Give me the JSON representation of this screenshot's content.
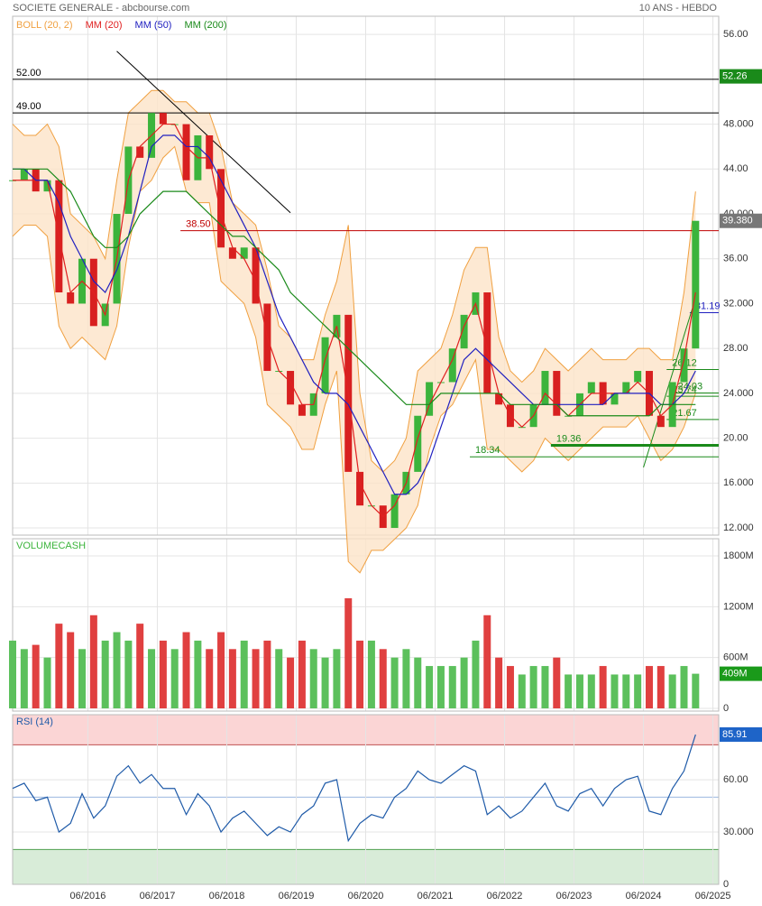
{
  "chart_data": {
    "type": "candlestick",
    "title": "SOCIETE GENERALE - abcbourse.com",
    "subtitle": "10 ANS - HEBDO",
    "x": [
      "2015-05",
      "2015-07",
      "2015-09",
      "2015-11",
      "2016-01",
      "2016-03",
      "2016-05",
      "2016-07",
      "2016-09",
      "2016-11",
      "2017-01",
      "2017-03",
      "2017-05",
      "2017-07",
      "2017-09",
      "2017-11",
      "2018-01",
      "2018-03",
      "2018-05",
      "2018-07",
      "2018-09",
      "2018-11",
      "2019-01",
      "2019-03",
      "2019-05",
      "2019-07",
      "2019-09",
      "2019-11",
      "2020-01",
      "2020-03",
      "2020-05",
      "2020-07",
      "2020-09",
      "2020-11",
      "2021-01",
      "2021-03",
      "2021-05",
      "2021-07",
      "2021-09",
      "2021-11",
      "2022-01",
      "2022-03",
      "2022-05",
      "2022-07",
      "2022-09",
      "2022-11",
      "2023-01",
      "2023-03",
      "2023-05",
      "2023-07",
      "2023-09",
      "2023-11",
      "2024-01",
      "2024-03",
      "2024-05",
      "2024-07",
      "2024-09",
      "2024-11",
      "2025-01",
      "2025-03"
    ],
    "close": [
      43,
      44,
      42,
      43,
      33,
      32,
      36,
      30,
      32,
      40,
      46,
      45,
      49,
      48,
      48,
      43,
      47,
      44,
      37,
      36,
      37,
      32,
      26,
      26,
      23,
      22,
      24,
      29,
      31,
      17,
      14,
      14,
      12,
      15,
      17,
      22,
      25,
      25,
      28,
      31,
      33,
      24,
      23,
      21,
      21,
      23,
      26,
      22,
      22,
      24,
      25,
      23,
      24,
      25,
      26,
      22,
      21,
      25,
      28,
      39.38
    ],
    "last_price_label": "39.380",
    "series": [
      {
        "name": "MM (20)",
        "color": "#e02020",
        "values": [
          43,
          43,
          43,
          43,
          38,
          33,
          34,
          33,
          31,
          36,
          43,
          46,
          47,
          48,
          48,
          46,
          45,
          45,
          40,
          37,
          36,
          34,
          29,
          26,
          25,
          23,
          23,
          27,
          30,
          24,
          16,
          14,
          13,
          14,
          16,
          20,
          23,
          25,
          27,
          30,
          32,
          28,
          24,
          22,
          21,
          22,
          24,
          23,
          22,
          23,
          24,
          24,
          24,
          24,
          25,
          24,
          22,
          23,
          27,
          33
        ]
      },
      {
        "name": "MM (50)",
        "color": "#2020c0",
        "values": [
          44,
          44,
          43,
          43,
          41,
          38,
          36,
          34,
          33,
          35,
          38,
          42,
          46,
          47,
          47,
          46,
          46,
          45,
          43,
          41,
          39,
          37,
          34,
          31,
          29,
          27,
          25,
          24,
          24,
          23,
          21,
          19,
          17,
          15,
          15,
          16,
          18,
          21,
          24,
          27,
          28,
          27,
          26,
          25,
          24,
          23,
          23,
          23,
          23,
          23,
          23,
          23,
          24,
          24,
          24,
          24,
          23,
          23,
          24,
          26
        ]
      },
      {
        "name": "MM (200)",
        "color": "#1a8a1a",
        "values": [
          44,
          44,
          44,
          44,
          43,
          42,
          40,
          38,
          37,
          37,
          38,
          40,
          41,
          42,
          42,
          42,
          41,
          40,
          39,
          38,
          38,
          37,
          36,
          35,
          33,
          32,
          31,
          30,
          29,
          28,
          27,
          26,
          25,
          24,
          23,
          23,
          23,
          24,
          24,
          24,
          24,
          24,
          24,
          23,
          23,
          23,
          23,
          23,
          22,
          22,
          22,
          22,
          22,
          22,
          22,
          22,
          23,
          23,
          23,
          23
        ]
      }
    ],
    "bollinger": {
      "name": "BOLL (20, 2)",
      "color": "#f0a040",
      "upper": [
        48,
        47,
        47,
        48,
        46,
        40,
        39,
        38,
        36,
        43,
        49,
        50,
        51,
        51,
        50,
        50,
        49,
        49,
        46,
        41,
        40,
        39,
        35,
        30,
        29,
        27,
        27,
        31,
        34,
        39,
        24,
        18,
        17,
        18,
        20,
        26,
        27,
        28,
        31,
        35,
        37,
        37,
        29,
        26,
        25,
        26,
        28,
        27,
        26,
        27,
        28,
        27,
        27,
        27,
        28,
        28,
        27,
        27,
        33,
        42
      ],
      "lower": [
        38,
        39,
        39,
        38,
        30,
        28,
        29,
        28,
        27,
        30,
        37,
        42,
        43,
        45,
        46,
        42,
        41,
        41,
        34,
        33,
        32,
        29,
        23,
        22,
        21,
        19,
        19,
        23,
        26,
        9,
        8,
        10,
        10,
        11,
        12,
        14,
        19,
        22,
        23,
        25,
        27,
        19,
        19,
        18,
        17,
        18,
        20,
        19,
        18,
        19,
        20,
        21,
        21,
        21,
        22,
        20,
        18,
        19,
        21,
        24
      ]
    },
    "xlim": [
      "2015-05",
      "2025-07"
    ],
    "xticks": [
      {
        "value": "2016-06",
        "label": "06/2016"
      },
      {
        "value": "2017-06",
        "label": "06/2017"
      },
      {
        "value": "2018-06",
        "label": "06/2018"
      },
      {
        "value": "2019-06",
        "label": "06/2019"
      },
      {
        "value": "2020-06",
        "label": "06/2020"
      },
      {
        "value": "2021-06",
        "label": "06/2021"
      },
      {
        "value": "2022-06",
        "label": "06/2022"
      },
      {
        "value": "2023-06",
        "label": "06/2023"
      },
      {
        "value": "2024-06",
        "label": "06/2024"
      },
      {
        "value": "2025-06",
        "label": "06/2025"
      }
    ],
    "ylim": [
      11.36,
      57.62
    ],
    "yticks": [
      {
        "value": 12,
        "label": "12.000"
      },
      {
        "value": 16,
        "label": "16.000"
      },
      {
        "value": 20,
        "label": "20.00"
      },
      {
        "value": 24,
        "label": "24.000"
      },
      {
        "value": 28,
        "label": "28.00"
      },
      {
        "value": 32,
        "label": "32.000"
      },
      {
        "value": 36,
        "label": "36.00"
      },
      {
        "value": 40,
        "label": "40.000"
      },
      {
        "value": 44,
        "label": "44.00"
      },
      {
        "value": 48,
        "label": "48.000"
      },
      {
        "value": 56,
        "label": "56.00"
      }
    ],
    "levels": [
      {
        "value": 52,
        "label": "52.00",
        "color": "#000000"
      },
      {
        "value": 49,
        "label": "49.00",
        "color": "#000000"
      },
      {
        "value": 38.5,
        "label": "38.50",
        "color": "#c00000",
        "from": "2017-10"
      },
      {
        "value": 18.34,
        "label": "18.34",
        "color": "#1a8a1a",
        "from": "2021-12"
      },
      {
        "value": 19.36,
        "label": "19.36",
        "color": "#1a8a1a",
        "from": "2023-02"
      },
      {
        "value": 21.67,
        "label": "21.67",
        "color": "#1a8a1a",
        "from": "2024-10"
      },
      {
        "value": 23.74,
        "label": "23.74",
        "color": "#1a8a1a",
        "from": "2024-10"
      },
      {
        "value": 24.03,
        "label": "24.03",
        "color": "#1a8a1a",
        "from": "2024-11"
      },
      {
        "value": 26.12,
        "label": "26.12",
        "color": "#1a8a1a",
        "from": "2024-10"
      },
      {
        "value": 31.19,
        "label": "31.19",
        "color": "#2020c0",
        "from": "2025-02"
      }
    ],
    "right_box": {
      "value": 52.26,
      "color": "#1a8a1a"
    },
    "trendlines": [
      {
        "x": [
          "2016-11",
          "2019-05"
        ],
        "y": [
          54.5,
          40.1
        ],
        "color": "#000000"
      },
      {
        "x": [
          "2024-06",
          "2025-03"
        ],
        "y": [
          17.4,
          32.5
        ],
        "color": "#1a8a1a"
      }
    ],
    "volume": {
      "title": "VOLUMECASH",
      "values": [
        800,
        700,
        750,
        600,
        1000,
        900,
        700,
        1100,
        800,
        900,
        800,
        1000,
        700,
        800,
        700,
        900,
        800,
        700,
        900,
        700,
        800,
        700,
        800,
        700,
        600,
        800,
        700,
        600,
        700,
        1300,
        800,
        800,
        700,
        600,
        700,
        600,
        500,
        500,
        500,
        600,
        800,
        1100,
        600,
        500,
        400,
        500,
        500,
        600,
        400,
        400,
        400,
        500,
        400,
        400,
        400,
        500,
        500,
        400,
        500,
        409
      ],
      "last_label": "409M",
      "ylim": [
        -32,
        2003
      ],
      "yticks": [
        0,
        {
          "value": 600,
          "label": "600M"
        },
        {
          "value": 1200,
          "label": "1200M"
        },
        {
          "value": 1800,
          "label": "1800M"
        }
      ]
    },
    "rsi": {
      "title": "RSI (14)",
      "color": "#1e5aa8",
      "values": [
        55,
        58,
        48,
        50,
        30,
        35,
        52,
        38,
        45,
        62,
        68,
        58,
        63,
        55,
        55,
        40,
        52,
        45,
        30,
        38,
        42,
        35,
        28,
        33,
        30,
        40,
        45,
        58,
        60,
        25,
        35,
        40,
        38,
        50,
        55,
        65,
        60,
        58,
        63,
        68,
        65,
        40,
        45,
        38,
        42,
        50,
        58,
        45,
        42,
        52,
        55,
        45,
        55,
        60,
        62,
        42,
        40,
        55,
        65,
        85.91
      ],
      "ylim": [
        0,
        97.3
      ],
      "yticks": [
        0,
        {
          "value": 30,
          "label": "30.000"
        },
        {
          "value": 60,
          "label": "60.00"
        }
      ],
      "zones": [
        20,
        80
      ],
      "midline": 50
    }
  }
}
